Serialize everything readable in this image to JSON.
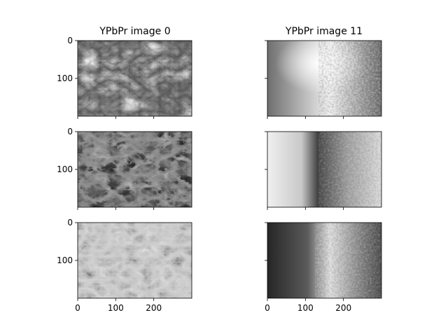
{
  "chart_data": [
    {
      "type": "heatmap",
      "title": "YPbPr image 0",
      "channel": "Y",
      "colormap": "gray",
      "image_shape": [
        200,
        300
      ],
      "xlim": [
        0,
        300
      ],
      "ylim": [
        200,
        0
      ],
      "xticks": [
        0,
        100,
        200
      ],
      "yticks": [
        0,
        100
      ],
      "show_xticklabels": false,
      "show_yticklabels": true
    },
    {
      "type": "heatmap",
      "title": "YPbPr image 11",
      "channel": "Y",
      "colormap": "gray",
      "image_shape": [
        200,
        300
      ],
      "xlim": [
        0,
        300
      ],
      "ylim": [
        200,
        0
      ],
      "xticks": [
        0,
        100,
        200
      ],
      "yticks": [
        0,
        100
      ],
      "show_xticklabels": false,
      "show_yticklabels": false
    },
    {
      "type": "heatmap",
      "title": "",
      "channel": "Pb",
      "colormap": "gray",
      "image_shape": [
        200,
        300
      ],
      "xlim": [
        0,
        300
      ],
      "ylim": [
        200,
        0
      ],
      "xticks": [
        0,
        100,
        200
      ],
      "yticks": [
        0,
        100
      ],
      "show_xticklabels": false,
      "show_yticklabels": true
    },
    {
      "type": "heatmap",
      "title": "",
      "channel": "Pb",
      "colormap": "gray",
      "image_shape": [
        200,
        300
      ],
      "xlim": [
        0,
        300
      ],
      "ylim": [
        200,
        0
      ],
      "xticks": [
        0,
        100,
        200
      ],
      "yticks": [
        0,
        100
      ],
      "show_xticklabels": false,
      "show_yticklabels": false
    },
    {
      "type": "heatmap",
      "title": "",
      "channel": "Pr",
      "colormap": "gray",
      "image_shape": [
        200,
        300
      ],
      "xlim": [
        0,
        300
      ],
      "ylim": [
        200,
        0
      ],
      "xticks": [
        0,
        100,
        200
      ],
      "yticks": [
        0,
        100
      ],
      "show_xticklabels": true,
      "show_yticklabels": true
    },
    {
      "type": "heatmap",
      "title": "",
      "channel": "Pr",
      "colormap": "gray",
      "image_shape": [
        200,
        300
      ],
      "xlim": [
        0,
        300
      ],
      "ylim": [
        200,
        0
      ],
      "xticks": [
        0,
        100,
        200
      ],
      "yticks": [
        0,
        100
      ],
      "show_xticklabels": true,
      "show_yticklabels": false
    }
  ]
}
